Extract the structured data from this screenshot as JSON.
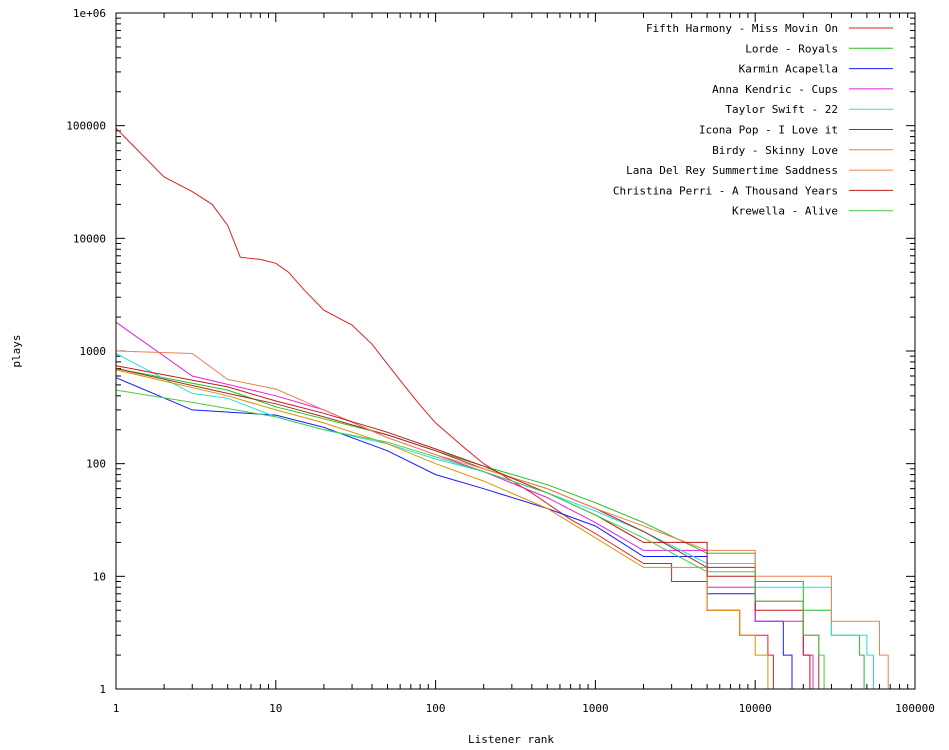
{
  "chart_data": {
    "type": "line",
    "title": "",
    "xlabel": "Listener rank",
    "ylabel": "plays",
    "xscale": "log",
    "yscale": "log",
    "xlim": [
      1,
      100000
    ],
    "ylim": [
      1,
      1000000
    ],
    "x_ticks": [
      1,
      10,
      100,
      1000,
      10000,
      100000
    ],
    "x_tick_labels": [
      "1",
      "10",
      "100",
      "1000",
      "10000",
      "100000"
    ],
    "y_ticks": [
      1,
      10,
      100,
      1000,
      10000,
      100000,
      1000000
    ],
    "y_tick_labels": [
      "1",
      "10",
      "100",
      "1000",
      "10000",
      "100000",
      "1e+06"
    ],
    "legend_position": "top-right",
    "series": [
      {
        "name": "Fifth Harmony - Miss Movin On",
        "color": "#e02020",
        "points": [
          [
            1,
            95000
          ],
          [
            2,
            35000
          ],
          [
            3,
            26000
          ],
          [
            4,
            20000
          ],
          [
            5,
            13000
          ],
          [
            6,
            6800
          ],
          [
            8,
            6500
          ],
          [
            10,
            6000
          ],
          [
            12,
            5000
          ],
          [
            15,
            3500
          ],
          [
            20,
            2300
          ],
          [
            30,
            1700
          ],
          [
            40,
            1150
          ],
          [
            60,
            550
          ],
          [
            80,
            330
          ],
          [
            100,
            230
          ],
          [
            150,
            140
          ],
          [
            200,
            100
          ],
          [
            400,
            55
          ],
          [
            700,
            32
          ],
          [
            1000,
            24
          ],
          [
            2000,
            13
          ],
          [
            3000,
            9
          ],
          [
            5000,
            5
          ],
          [
            8000,
            3
          ],
          [
            12000,
            2
          ],
          [
            13000,
            1
          ]
        ]
      },
      {
        "name": "Lorde - Royals",
        "color": "#20c020",
        "points": [
          [
            1,
            700
          ],
          [
            5,
            450
          ],
          [
            10,
            320
          ],
          [
            20,
            250
          ],
          [
            50,
            180
          ],
          [
            100,
            130
          ],
          [
            200,
            95
          ],
          [
            500,
            65
          ],
          [
            1000,
            45
          ],
          [
            2000,
            30
          ],
          [
            5000,
            16
          ],
          [
            10000,
            9
          ],
          [
            20000,
            5
          ],
          [
            30000,
            3
          ],
          [
            45000,
            2
          ],
          [
            48000,
            1
          ]
        ]
      },
      {
        "name": "Karmin Acapella",
        "color": "#1a1aff",
        "points": [
          [
            1,
            580
          ],
          [
            3,
            300
          ],
          [
            10,
            270
          ],
          [
            20,
            210
          ],
          [
            50,
            130
          ],
          [
            100,
            80
          ],
          [
            200,
            60
          ],
          [
            500,
            40
          ],
          [
            1000,
            28
          ],
          [
            2000,
            15
          ],
          [
            5000,
            7
          ],
          [
            10000,
            4
          ],
          [
            15000,
            2
          ],
          [
            17000,
            1
          ]
        ]
      },
      {
        "name": "Anna Kendric - Cups",
        "color": "#e020e0",
        "points": [
          [
            1,
            1800
          ],
          [
            3,
            600
          ],
          [
            10,
            400
          ],
          [
            20,
            300
          ],
          [
            50,
            170
          ],
          [
            100,
            120
          ],
          [
            200,
            85
          ],
          [
            500,
            50
          ],
          [
            1000,
            30
          ],
          [
            2000,
            17
          ],
          [
            5000,
            8
          ],
          [
            10000,
            4
          ],
          [
            20000,
            2
          ],
          [
            23000,
            1
          ]
        ]
      },
      {
        "name": "Taylor Swift - 22",
        "color": "#20e0e0",
        "points": [
          [
            1,
            950
          ],
          [
            3,
            420
          ],
          [
            5,
            380
          ],
          [
            10,
            260
          ],
          [
            20,
            200
          ],
          [
            50,
            150
          ],
          [
            100,
            110
          ],
          [
            200,
            85
          ],
          [
            500,
            55
          ],
          [
            1000,
            38
          ],
          [
            2000,
            25
          ],
          [
            5000,
            13
          ],
          [
            10000,
            8
          ],
          [
            30000,
            3
          ],
          [
            50000,
            2
          ],
          [
            55000,
            1
          ]
        ]
      },
      {
        "name": "Icona Pop - I Love it",
        "color": "#a03020",
        "points": [
          [
            1,
            700
          ],
          [
            5,
            420
          ],
          [
            10,
            340
          ],
          [
            20,
            260
          ],
          [
            50,
            180
          ],
          [
            100,
            130
          ],
          [
            200,
            90
          ],
          [
            500,
            60
          ],
          [
            1000,
            40
          ],
          [
            2000,
            25
          ],
          [
            5000,
            12
          ],
          [
            10000,
            6
          ],
          [
            20000,
            3
          ],
          [
            25000,
            1
          ]
        ]
      },
      {
        "name": "Birdy - Skinny Love",
        "color": "#e09000",
        "points": [
          [
            1,
            680
          ],
          [
            5,
            400
          ],
          [
            10,
            300
          ],
          [
            20,
            230
          ],
          [
            50,
            150
          ],
          [
            100,
            100
          ],
          [
            200,
            70
          ],
          [
            500,
            40
          ],
          [
            1000,
            22
          ],
          [
            2000,
            12
          ],
          [
            5000,
            5
          ],
          [
            8000,
            3
          ],
          [
            10000,
            2
          ],
          [
            12000,
            1
          ]
        ]
      },
      {
        "name": "Lana Del Rey Summertime Saddness",
        "color": "#f08050",
        "points": [
          [
            1,
            1000
          ],
          [
            3,
            950
          ],
          [
            5,
            560
          ],
          [
            10,
            460
          ],
          [
            20,
            300
          ],
          [
            50,
            170
          ],
          [
            100,
            120
          ],
          [
            200,
            90
          ],
          [
            500,
            60
          ],
          [
            1000,
            40
          ],
          [
            2000,
            28
          ],
          [
            5000,
            17
          ],
          [
            10000,
            10
          ],
          [
            30000,
            4
          ],
          [
            60000,
            2
          ],
          [
            68000,
            1
          ]
        ]
      },
      {
        "name": "Christina Perri - A Thousand Years",
        "color": "#c01818",
        "points": [
          [
            1,
            740
          ],
          [
            5,
            480
          ],
          [
            10,
            360
          ],
          [
            20,
            280
          ],
          [
            50,
            190
          ],
          [
            100,
            135
          ],
          [
            200,
            95
          ],
          [
            500,
            55
          ],
          [
            1000,
            35
          ],
          [
            2000,
            20
          ],
          [
            5000,
            10
          ],
          [
            10000,
            5
          ],
          [
            20000,
            2
          ],
          [
            22000,
            1
          ]
        ]
      },
      {
        "name": "Krewella - Alive",
        "color": "#40d040",
        "points": [
          [
            1,
            450
          ],
          [
            3,
            350
          ],
          [
            10,
            260
          ],
          [
            20,
            200
          ],
          [
            50,
            155
          ],
          [
            100,
            115
          ],
          [
            200,
            85
          ],
          [
            500,
            55
          ],
          [
            1000,
            35
          ],
          [
            2000,
            22
          ],
          [
            5000,
            11
          ],
          [
            10000,
            6
          ],
          [
            20000,
            3
          ],
          [
            25000,
            2
          ],
          [
            27000,
            1
          ]
        ]
      }
    ]
  }
}
